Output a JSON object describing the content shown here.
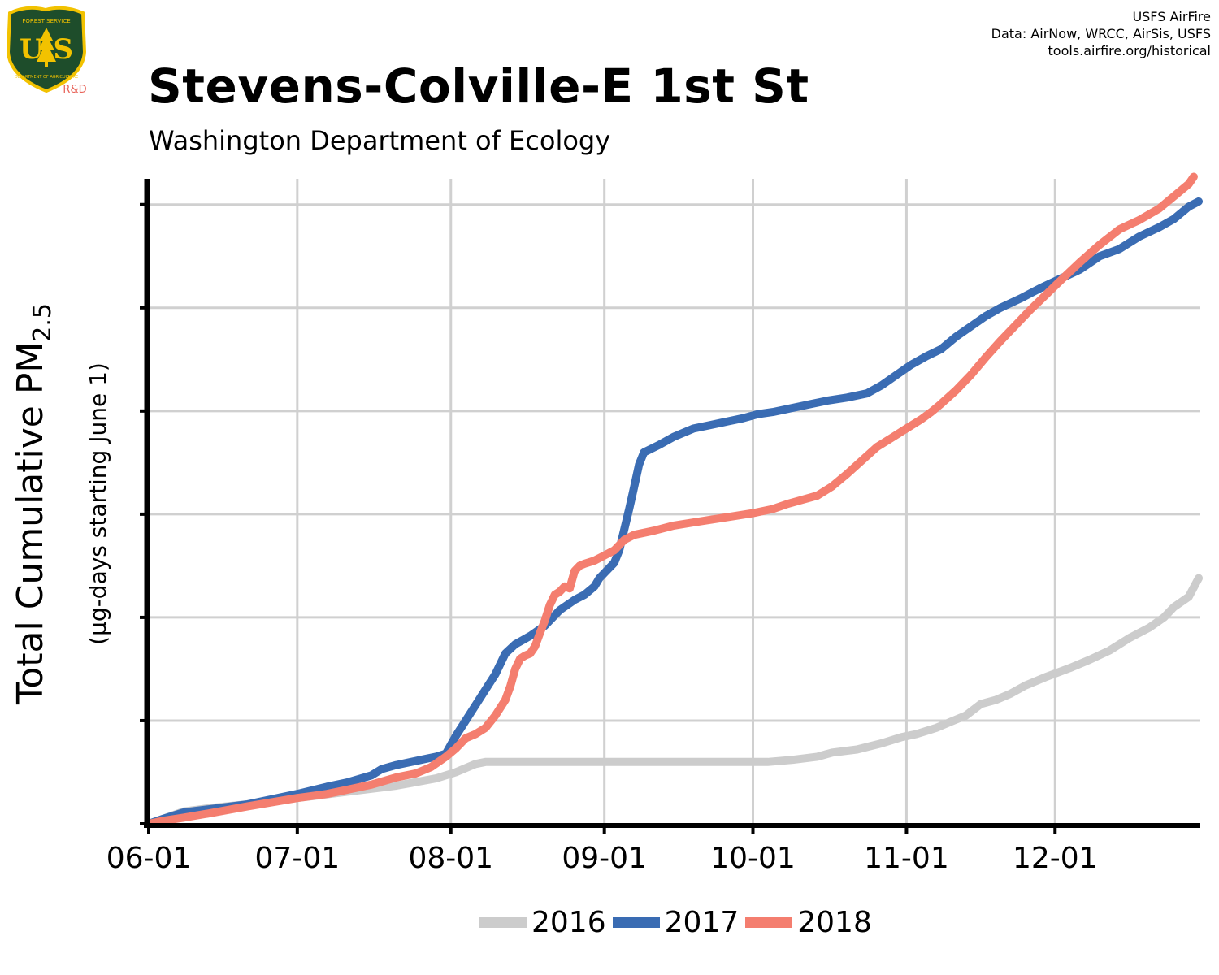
{
  "logo": {
    "icon": "usfs-shield-icon",
    "top_text": "FOREST SERVICE",
    "bottom_text": "DEPARTMENT OF AGRICULTURE",
    "letters": "U S",
    "badge": "R&D",
    "colors": {
      "shield": "#1e4d2b",
      "border": "#f2c200",
      "badge": "#e8645a"
    }
  },
  "credits": {
    "line1": "USFS AirFire",
    "line2": "Data: AirNow, WRCC, AirSis, USFS",
    "line3": "tools.airfire.org/historical"
  },
  "header": {
    "title": "Stevens-Colville-E 1st St",
    "subtitle": "Washington Department of Ecology"
  },
  "chart_data": {
    "type": "line",
    "ylabel": "Total Cumulative PM2.5",
    "ylabel_main": "Total Cumulative PM",
    "ylabel_sub": "2.5",
    "ylabel_units": "(µg-days starting June 1)",
    "x_ticks": [
      "06-01",
      "07-01",
      "08-01",
      "09-01",
      "10-01",
      "11-01",
      "12-01"
    ],
    "x_tick_day": [
      0,
      30,
      61,
      92,
      122,
      153,
      183
    ],
    "xlim": [
      0,
      212
    ],
    "ylim": [
      0,
      6.25
    ],
    "y_tick_values": [
      0,
      1,
      2,
      3,
      4,
      5,
      6
    ],
    "y_tick_labels_shown": false,
    "grid": true,
    "legend_position": "bottom",
    "series": [
      {
        "name": "2016",
        "color": "#cccccc",
        "points": [
          [
            0,
            0
          ],
          [
            3,
            0.05
          ],
          [
            7,
            0.12
          ],
          [
            12,
            0.15
          ],
          [
            20,
            0.19
          ],
          [
            30,
            0.25
          ],
          [
            40,
            0.31
          ],
          [
            50,
            0.37
          ],
          [
            58,
            0.44
          ],
          [
            62,
            0.5
          ],
          [
            66,
            0.58
          ],
          [
            68,
            0.6
          ],
          [
            75,
            0.6
          ],
          [
            85,
            0.6
          ],
          [
            100,
            0.6
          ],
          [
            115,
            0.6
          ],
          [
            125,
            0.6
          ],
          [
            130,
            0.62
          ],
          [
            135,
            0.65
          ],
          [
            138,
            0.69
          ],
          [
            143,
            0.72
          ],
          [
            148,
            0.78
          ],
          [
            152,
            0.84
          ],
          [
            155,
            0.87
          ],
          [
            159,
            0.93
          ],
          [
            162,
            0.99
          ],
          [
            165,
            1.05
          ],
          [
            168,
            1.16
          ],
          [
            171,
            1.2
          ],
          [
            174,
            1.26
          ],
          [
            177,
            1.34
          ],
          [
            181,
            1.42
          ],
          [
            186,
            1.51
          ],
          [
            190,
            1.59
          ],
          [
            194,
            1.68
          ],
          [
            198,
            1.8
          ],
          [
            202,
            1.9
          ],
          [
            205,
            2.0
          ],
          [
            207,
            2.1
          ],
          [
            210,
            2.2
          ],
          [
            212,
            2.38
          ]
        ]
      },
      {
        "name": "2017",
        "color": "#3a6cb3",
        "points": [
          [
            0,
            0
          ],
          [
            3,
            0.05
          ],
          [
            7,
            0.11
          ],
          [
            12,
            0.14
          ],
          [
            20,
            0.19
          ],
          [
            30,
            0.29
          ],
          [
            36,
            0.36
          ],
          [
            40,
            0.4
          ],
          [
            45,
            0.47
          ],
          [
            47,
            0.53
          ],
          [
            50,
            0.57
          ],
          [
            55,
            0.62
          ],
          [
            58,
            0.65
          ],
          [
            60,
            0.68
          ],
          [
            62,
            0.85
          ],
          [
            64,
            1.0
          ],
          [
            66,
            1.15
          ],
          [
            68,
            1.3
          ],
          [
            70,
            1.45
          ],
          [
            72,
            1.65
          ],
          [
            74,
            1.74
          ],
          [
            77,
            1.82
          ],
          [
            80,
            1.92
          ],
          [
            83,
            2.07
          ],
          [
            86,
            2.17
          ],
          [
            88,
            2.22
          ],
          [
            90,
            2.3
          ],
          [
            91,
            2.38
          ],
          [
            92,
            2.43
          ],
          [
            94,
            2.53
          ],
          [
            95,
            2.65
          ],
          [
            96,
            2.85
          ],
          [
            97,
            3.05
          ],
          [
            98,
            3.26
          ],
          [
            99,
            3.48
          ],
          [
            100,
            3.6
          ],
          [
            103,
            3.67
          ],
          [
            106,
            3.75
          ],
          [
            110,
            3.83
          ],
          [
            113,
            3.86
          ],
          [
            117,
            3.9
          ],
          [
            120,
            3.93
          ],
          [
            123,
            3.97
          ],
          [
            126,
            3.99
          ],
          [
            130,
            4.03
          ],
          [
            134,
            4.07
          ],
          [
            137,
            4.1
          ],
          [
            141,
            4.13
          ],
          [
            145,
            4.17
          ],
          [
            148,
            4.25
          ],
          [
            151,
            4.35
          ],
          [
            154,
            4.45
          ],
          [
            157,
            4.53
          ],
          [
            160,
            4.6
          ],
          [
            163,
            4.72
          ],
          [
            166,
            4.82
          ],
          [
            169,
            4.92
          ],
          [
            172,
            5.0
          ],
          [
            176,
            5.09
          ],
          [
            180,
            5.19
          ],
          [
            184,
            5.28
          ],
          [
            188,
            5.37
          ],
          [
            192,
            5.5
          ],
          [
            196,
            5.57
          ],
          [
            200,
            5.69
          ],
          [
            204,
            5.78
          ],
          [
            207,
            5.86
          ],
          [
            210,
            5.98
          ],
          [
            212,
            6.03
          ]
        ]
      },
      {
        "name": "2018",
        "color": "#f47e6f",
        "points": [
          [
            0,
            0
          ],
          [
            3,
            0.03
          ],
          [
            7,
            0.06
          ],
          [
            12,
            0.1
          ],
          [
            20,
            0.17
          ],
          [
            30,
            0.25
          ],
          [
            36,
            0.29
          ],
          [
            40,
            0.33
          ],
          [
            45,
            0.38
          ],
          [
            50,
            0.45
          ],
          [
            54,
            0.49
          ],
          [
            57,
            0.55
          ],
          [
            60,
            0.65
          ],
          [
            62,
            0.73
          ],
          [
            64,
            0.83
          ],
          [
            66,
            0.87
          ],
          [
            68,
            0.93
          ],
          [
            70,
            1.05
          ],
          [
            72,
            1.2
          ],
          [
            73,
            1.33
          ],
          [
            74,
            1.5
          ],
          [
            75,
            1.6
          ],
          [
            76,
            1.63
          ],
          [
            77,
            1.65
          ],
          [
            78,
            1.72
          ],
          [
            79,
            1.85
          ],
          [
            80,
            1.97
          ],
          [
            81,
            2.12
          ],
          [
            82,
            2.22
          ],
          [
            83,
            2.25
          ],
          [
            84,
            2.3
          ],
          [
            85,
            2.28
          ],
          [
            86,
            2.45
          ],
          [
            87,
            2.5
          ],
          [
            88,
            2.52
          ],
          [
            90,
            2.55
          ],
          [
            92,
            2.6
          ],
          [
            94,
            2.65
          ],
          [
            96,
            2.75
          ],
          [
            98,
            2.8
          ],
          [
            102,
            2.84
          ],
          [
            106,
            2.89
          ],
          [
            110,
            2.92
          ],
          [
            114,
            2.95
          ],
          [
            118,
            2.98
          ],
          [
            122,
            3.01
          ],
          [
            126,
            3.05
          ],
          [
            129,
            3.1
          ],
          [
            132,
            3.14
          ],
          [
            135,
            3.18
          ],
          [
            138,
            3.27
          ],
          [
            141,
            3.39
          ],
          [
            144,
            3.52
          ],
          [
            147,
            3.65
          ],
          [
            150,
            3.74
          ],
          [
            153,
            3.83
          ],
          [
            156,
            3.92
          ],
          [
            158,
            3.99
          ],
          [
            160,
            4.07
          ],
          [
            163,
            4.2
          ],
          [
            166,
            4.35
          ],
          [
            169,
            4.52
          ],
          [
            172,
            4.68
          ],
          [
            175,
            4.83
          ],
          [
            178,
            4.98
          ],
          [
            181,
            5.12
          ],
          [
            184,
            5.26
          ],
          [
            188,
            5.44
          ],
          [
            192,
            5.61
          ],
          [
            196,
            5.76
          ],
          [
            200,
            5.85
          ],
          [
            204,
            5.96
          ],
          [
            207,
            6.08
          ],
          [
            210,
            6.2
          ],
          [
            211,
            6.27
          ]
        ]
      }
    ]
  }
}
